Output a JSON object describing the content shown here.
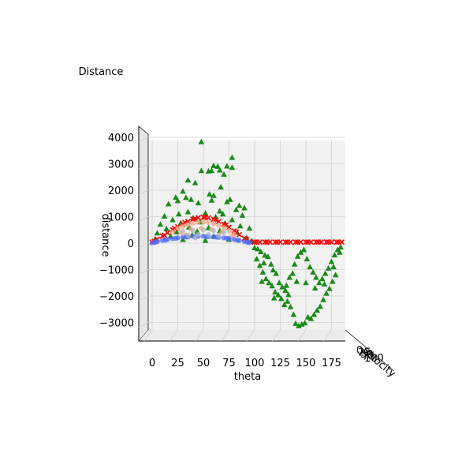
{
  "chart_data": {
    "type": "scatter",
    "title": "Distance",
    "xlabel": "theta",
    "ylabel": "velocity",
    "zlabel": "distance",
    "x_ticks": [
      "0",
      "25",
      "50",
      "75",
      "100",
      "125",
      "150",
      "175"
    ],
    "z_ticks": [
      "−3000",
      "−2000",
      "−1000",
      "0",
      "1000",
      "2000",
      "3000",
      "4000"
    ],
    "y_ticks_overlapping": [
      "0",
      "25",
      "50",
      "75",
      "100"
    ],
    "xlim": [
      -10,
      190
    ],
    "zlim": [
      -3800,
      4000
    ],
    "grid": true,
    "view": "side view looking along the velocity axis",
    "series": [
      {
        "color": "#008000",
        "marker": "triangle",
        "note_points": "wide spread; positive values for theta 0-90, negative for theta 90-180",
        "points": [
          [
            48,
            3830
          ],
          [
            78,
            3240
          ],
          [
            60,
            2930
          ],
          [
            64,
            2900
          ],
          [
            78,
            2860
          ],
          [
            73,
            2910
          ],
          [
            66,
            2760
          ],
          [
            58,
            2740
          ],
          [
            48,
            2740
          ],
          [
            55,
            2720
          ],
          [
            70,
            2600
          ],
          [
            35,
            2380
          ],
          [
            42,
            2280
          ],
          [
            67,
            2120
          ],
          [
            30,
            1960
          ],
          [
            60,
            1800
          ],
          [
            23,
            1730
          ],
          [
            56,
            1850
          ],
          [
            33,
            1720
          ],
          [
            38,
            1650
          ],
          [
            76,
            1650
          ],
          [
            73,
            1560
          ],
          [
            25,
            1600
          ],
          [
            58,
            1620
          ],
          [
            16,
            1480
          ],
          [
            45,
            1520
          ],
          [
            85,
            1420
          ],
          [
            90,
            1330
          ],
          [
            82,
            1260
          ],
          [
            66,
            1210
          ],
          [
            12,
            1020
          ],
          [
            26,
            1100
          ],
          [
            35,
            1180
          ],
          [
            52,
            1130
          ],
          [
            69,
            1100
          ],
          [
            88,
            1050
          ],
          [
            20,
            880
          ],
          [
            40,
            950
          ],
          [
            62,
            990
          ],
          [
            78,
            880
          ],
          [
            8,
            710
          ],
          [
            28,
            760
          ],
          [
            47,
            800
          ],
          [
            71,
            750
          ],
          [
            86,
            650
          ],
          [
            14,
            540
          ],
          [
            36,
            600
          ],
          [
            55,
            580
          ],
          [
            95,
            560
          ],
          [
            5,
            380
          ],
          [
            24,
            420
          ],
          [
            44,
            440
          ],
          [
            66,
            470
          ],
          [
            83,
            400
          ],
          [
            18,
            260
          ],
          [
            39,
            300
          ],
          [
            60,
            250
          ],
          [
            92,
            200
          ],
          [
            3,
            150
          ],
          [
            30,
            130
          ],
          [
            52,
            100
          ],
          [
            75,
            140
          ],
          [
            97,
            80
          ],
          [
            100,
            -180
          ],
          [
            103,
            -220
          ],
          [
            106,
            -330
          ],
          [
            110,
            -460
          ],
          [
            113,
            -510
          ],
          [
            116,
            -800
          ],
          [
            118,
            -1020
          ],
          [
            121,
            -1150
          ],
          [
            124,
            -1500
          ],
          [
            127,
            -1660
          ],
          [
            130,
            -1790
          ],
          [
            132,
            -2200
          ],
          [
            135,
            -2410
          ],
          [
            138,
            -2700
          ],
          [
            140,
            -3040
          ],
          [
            143,
            -3130
          ],
          [
            146,
            -3070
          ],
          [
            149,
            -3020
          ],
          [
            152,
            -2800
          ],
          [
            155,
            -2860
          ],
          [
            158,
            -2700
          ],
          [
            161,
            -2540
          ],
          [
            164,
            -2390
          ],
          [
            167,
            -2140
          ],
          [
            170,
            -1900
          ],
          [
            173,
            -1720
          ],
          [
            176,
            -1450
          ],
          [
            179,
            -1200
          ],
          [
            102,
            -600
          ],
          [
            105,
            -850
          ],
          [
            108,
            -1100
          ],
          [
            111,
            -1350
          ],
          [
            114,
            -1500
          ],
          [
            117,
            -1620
          ],
          [
            120,
            -1850
          ],
          [
            123,
            -1960
          ],
          [
            126,
            -2100
          ],
          [
            129,
            -2330
          ],
          [
            131,
            -1600
          ],
          [
            134,
            -1300
          ],
          [
            137,
            -1150
          ],
          [
            139,
            -800
          ],
          [
            142,
            -500
          ],
          [
            145,
            -350
          ],
          [
            148,
            -250
          ],
          [
            151,
            -600
          ],
          [
            154,
            -900
          ],
          [
            157,
            -1100
          ],
          [
            160,
            -1300
          ],
          [
            163,
            -1500
          ],
          [
            166,
            -1350
          ],
          [
            169,
            -1150
          ],
          [
            172,
            -950
          ],
          [
            175,
            -700
          ],
          [
            178,
            -450
          ],
          [
            181,
            -250
          ],
          [
            184,
            -150
          ],
          [
            107,
            -1450
          ],
          [
            119,
            -2080
          ],
          [
            133,
            -1950
          ],
          [
            141,
            -1450
          ],
          [
            150,
            -1500
          ],
          [
            159,
            -1700
          ],
          [
            168,
            -1550
          ],
          [
            177,
            -900
          ],
          [
            183,
            -350
          ],
          [
            109,
            -750
          ]
        ]
      },
      {
        "color": "#ff0000",
        "marker": "x",
        "points": [
          [
            0,
            40
          ],
          [
            5,
            150
          ],
          [
            10,
            270
          ],
          [
            15,
            390
          ],
          [
            20,
            510
          ],
          [
            25,
            620
          ],
          [
            30,
            730
          ],
          [
            35,
            820
          ],
          [
            40,
            900
          ],
          [
            45,
            960
          ],
          [
            50,
            980
          ],
          [
            55,
            960
          ],
          [
            60,
            900
          ],
          [
            65,
            820
          ],
          [
            70,
            720
          ],
          [
            75,
            600
          ],
          [
            80,
            460
          ],
          [
            85,
            320
          ],
          [
            90,
            180
          ],
          [
            95,
            60
          ],
          [
            100,
            40
          ],
          [
            105,
            40
          ],
          [
            110,
            40
          ],
          [
            115,
            40
          ],
          [
            120,
            40
          ],
          [
            125,
            40
          ],
          [
            130,
            40
          ],
          [
            135,
            40
          ],
          [
            140,
            40
          ],
          [
            145,
            40
          ],
          [
            150,
            40
          ],
          [
            155,
            40
          ],
          [
            160,
            40
          ],
          [
            165,
            40
          ],
          [
            170,
            40
          ],
          [
            175,
            40
          ],
          [
            180,
            40
          ],
          [
            185,
            40
          ],
          [
            2,
            70
          ],
          [
            12,
            300
          ],
          [
            22,
            560
          ],
          [
            32,
            780
          ],
          [
            42,
            920
          ],
          [
            52,
            980
          ],
          [
            62,
            880
          ],
          [
            72,
            680
          ],
          [
            82,
            420
          ],
          [
            92,
            140
          ],
          [
            102,
            40
          ],
          [
            112,
            40
          ],
          [
            122,
            40
          ],
          [
            132,
            40
          ],
          [
            142,
            40
          ],
          [
            152,
            40
          ],
          [
            162,
            40
          ],
          [
            172,
            40
          ],
          [
            182,
            40
          ]
        ]
      },
      {
        "color": "#f4a582",
        "marker": "circle",
        "points": [
          [
            20,
            420
          ],
          [
            25,
            560
          ],
          [
            30,
            640
          ],
          [
            35,
            700
          ],
          [
            40,
            760
          ],
          [
            45,
            790
          ],
          [
            50,
            800
          ],
          [
            55,
            780
          ],
          [
            60,
            740
          ],
          [
            65,
            680
          ],
          [
            70,
            590
          ],
          [
            75,
            470
          ],
          [
            80,
            340
          ],
          [
            28,
            400
          ],
          [
            38,
            520
          ],
          [
            48,
            560
          ],
          [
            58,
            520
          ],
          [
            68,
            420
          ],
          [
            78,
            260
          ],
          [
            33,
            300
          ]
        ]
      },
      {
        "color": "#4b6bff",
        "marker": "circle",
        "points": [
          [
            0,
            10
          ],
          [
            5,
            60
          ],
          [
            10,
            100
          ],
          [
            15,
            140
          ],
          [
            20,
            170
          ],
          [
            25,
            200
          ],
          [
            30,
            220
          ],
          [
            35,
            240
          ],
          [
            40,
            250
          ],
          [
            45,
            260
          ],
          [
            50,
            260
          ],
          [
            55,
            250
          ],
          [
            60,
            240
          ],
          [
            65,
            220
          ],
          [
            70,
            200
          ],
          [
            75,
            170
          ],
          [
            80,
            140
          ],
          [
            85,
            100
          ],
          [
            90,
            60
          ],
          [
            95,
            20
          ],
          [
            3,
            30
          ],
          [
            13,
            110
          ],
          [
            23,
            180
          ],
          [
            33,
            230
          ],
          [
            43,
            250
          ],
          [
            53,
            250
          ],
          [
            63,
            230
          ],
          [
            73,
            180
          ],
          [
            83,
            110
          ],
          [
            93,
            30
          ]
        ]
      },
      {
        "color": "#b0b8c8",
        "marker": "circle",
        "points": [
          [
            30,
            450
          ],
          [
            40,
            480
          ],
          [
            50,
            500
          ],
          [
            60,
            470
          ],
          [
            70,
            400
          ],
          [
            35,
            300
          ],
          [
            45,
            330
          ],
          [
            55,
            320
          ],
          [
            65,
            280
          ],
          [
            42,
            200
          ]
        ]
      }
    ]
  }
}
